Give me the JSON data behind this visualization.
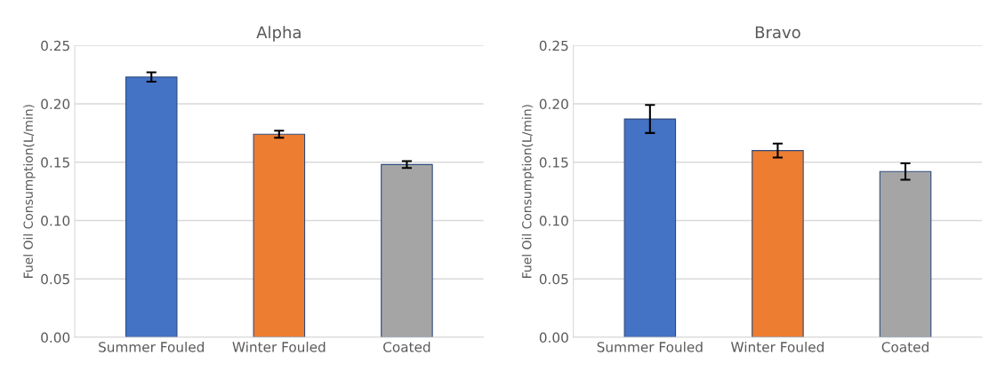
{
  "chart_data": [
    {
      "type": "bar",
      "title": "Alpha",
      "ylabel": "Fuel Oil Consumption(L/min)",
      "categories": [
        "Summer Fouled",
        "Winter Fouled",
        "Coated"
      ],
      "values": [
        0.223,
        0.174,
        0.148
      ],
      "errors": [
        0.004,
        0.003,
        0.003
      ],
      "colors": [
        "#4472c4",
        "#ed7d31",
        "#a5a5a5"
      ],
      "ylim": [
        0,
        0.25
      ],
      "yticks": [
        {
          "value": 0,
          "label": "0.00"
        },
        {
          "value": 0.05,
          "label": "0.05"
        },
        {
          "value": 0.1,
          "label": "0.10"
        },
        {
          "value": 0.15,
          "label": "0.15"
        },
        {
          "value": 0.2,
          "label": "0.20"
        },
        {
          "value": 0.25,
          "label": "0.25"
        }
      ],
      "grid": "y"
    },
    {
      "type": "bar",
      "title": "Bravo",
      "ylabel": "Fuel Oil Consumption(L/min)",
      "categories": [
        "Summer Fouled",
        "Winter Fouled",
        "Coated"
      ],
      "values": [
        0.187,
        0.16,
        0.142
      ],
      "errors": [
        0.012,
        0.006,
        0.007
      ],
      "colors": [
        "#4472c4",
        "#ed7d31",
        "#a5a5a5"
      ],
      "ylim": [
        0,
        0.25
      ],
      "yticks": [
        {
          "value": 0,
          "label": "0.00"
        },
        {
          "value": 0.05,
          "label": "0.05"
        },
        {
          "value": 0.1,
          "label": "0.10"
        },
        {
          "value": 0.15,
          "label": "0.15"
        },
        {
          "value": 0.2,
          "label": "0.20"
        },
        {
          "value": 0.25,
          "label": "0.25"
        }
      ],
      "grid": "y"
    }
  ]
}
